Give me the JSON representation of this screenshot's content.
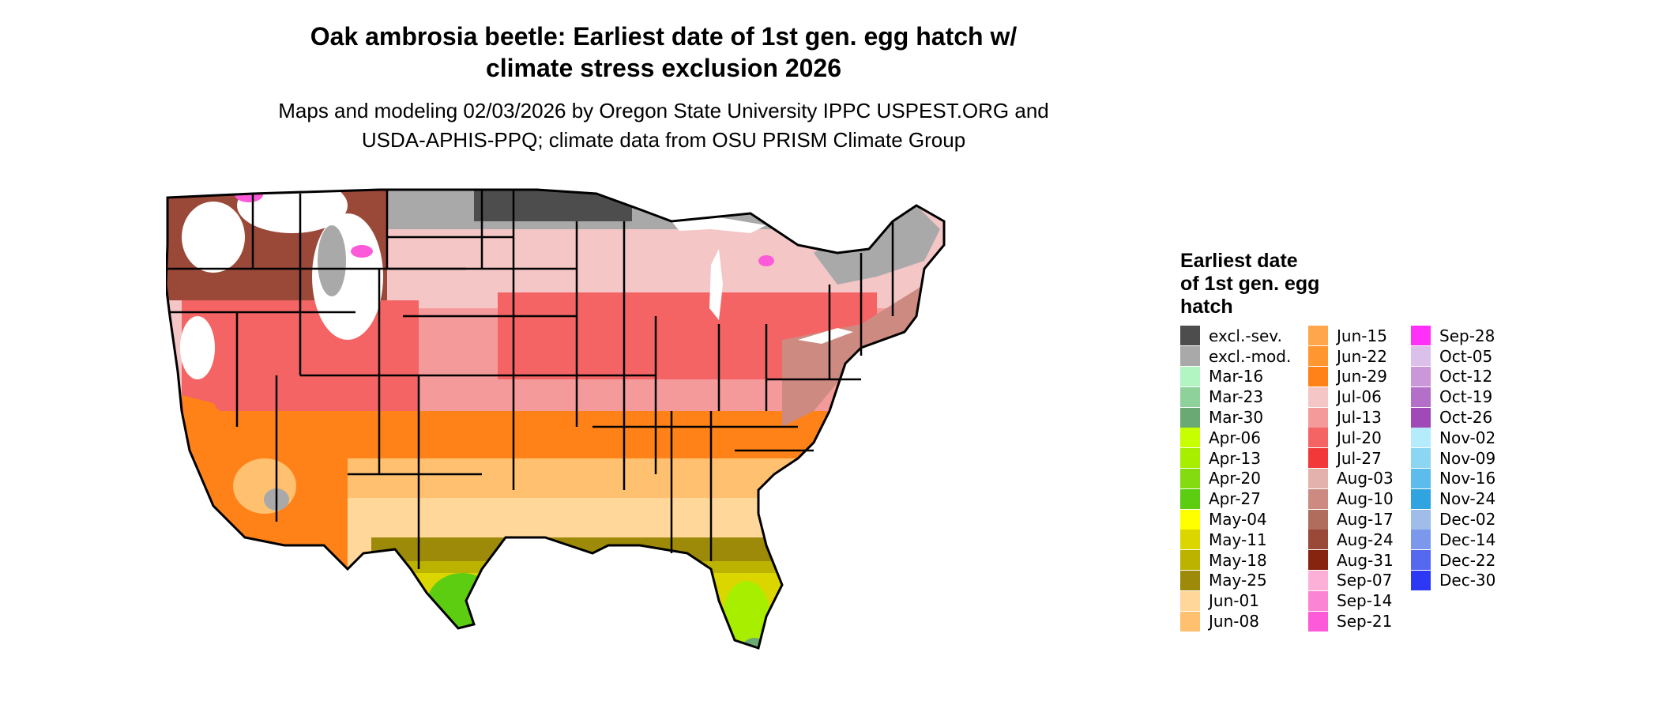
{
  "title_line1": "Oak ambrosia beetle: Earliest date of 1st gen. egg hatch w/",
  "title_line2": "climate stress exclusion 2026",
  "subtitle_line1": "Maps and modeling 02/03/2026 by Oregon State University IPPC USPEST.ORG and",
  "subtitle_line2": "USDA-APHIS-PPQ; climate data from OSU PRISM Climate Group",
  "legend": {
    "title_line1": "Earliest date",
    "title_line2": "of 1st gen. egg",
    "title_line3": "hatch",
    "col1": [
      {
        "label": "excl.-sev.",
        "color": "#4d4d4d"
      },
      {
        "label": "excl.-mod.",
        "color": "#a9a9a9"
      },
      {
        "label": "Mar-16",
        "color": "#b2f5c2"
      },
      {
        "label": "Mar-23",
        "color": "#8ed19b"
      },
      {
        "label": "Mar-30",
        "color": "#6aa874"
      },
      {
        "label": "Apr-06",
        "color": "#c8ff00"
      },
      {
        "label": "Apr-13",
        "color": "#a8ee00"
      },
      {
        "label": "Apr-20",
        "color": "#84dc10"
      },
      {
        "label": "Apr-27",
        "color": "#5ccd10"
      },
      {
        "label": "May-04",
        "color": "#ffff00"
      },
      {
        "label": "May-11",
        "color": "#dcd600"
      },
      {
        "label": "May-18",
        "color": "#bcb200"
      },
      {
        "label": "May-25",
        "color": "#9c8a08"
      },
      {
        "label": "Jun-01",
        "color": "#ffd79a"
      },
      {
        "label": "Jun-08",
        "color": "#ffc070"
      }
    ],
    "col2": [
      {
        "label": "Jun-15",
        "color": "#ffa64c"
      },
      {
        "label": "Jun-22",
        "color": "#ff9630"
      },
      {
        "label": "Jun-29",
        "color": "#ff8218"
      },
      {
        "label": "Jul-06",
        "color": "#f4c6c6"
      },
      {
        "label": "Jul-13",
        "color": "#f49a9a"
      },
      {
        "label": "Jul-20",
        "color": "#f46464"
      },
      {
        "label": "Jul-27",
        "color": "#f23838"
      },
      {
        "label": "Aug-03",
        "color": "#e4b2ac"
      },
      {
        "label": "Aug-10",
        "color": "#cc8a80"
      },
      {
        "label": "Aug-17",
        "color": "#b06c5c"
      },
      {
        "label": "Aug-24",
        "color": "#9a4838"
      },
      {
        "label": "Aug-31",
        "color": "#862410"
      },
      {
        "label": "Sep-07",
        "color": "#fcb0d8"
      },
      {
        "label": "Sep-14",
        "color": "#fc84d4"
      },
      {
        "label": "Sep-21",
        "color": "#fc5ad8"
      }
    ],
    "col3": [
      {
        "label": "Sep-28",
        "color": "#ff30f8"
      },
      {
        "label": "Oct-05",
        "color": "#dcc0ec"
      },
      {
        "label": "Oct-12",
        "color": "#ca98d8"
      },
      {
        "label": "Oct-19",
        "color": "#b470c8"
      },
      {
        "label": "Oct-26",
        "color": "#a04ab8"
      },
      {
        "label": "Nov-02",
        "color": "#b4ecfc"
      },
      {
        "label": "Nov-09",
        "color": "#8cd6f4"
      },
      {
        "label": "Nov-16",
        "color": "#5cbcec"
      },
      {
        "label": "Nov-24",
        "color": "#30a4e0"
      },
      {
        "label": "Dec-02",
        "color": "#a0bce8"
      },
      {
        "label": "Dec-14",
        "color": "#7c98ec"
      },
      {
        "label": "Dec-22",
        "color": "#5468f0"
      },
      {
        "label": "Dec-30",
        "color": "#2c38f4"
      }
    ]
  },
  "map_colors": {
    "sev": "#4d4d4d",
    "mod": "#a9a9a9",
    "white": "#ffffff",
    "pink_light": "#f4c6c6",
    "pink_mid": "#f49a9a",
    "red": "#f46464",
    "brown_light": "#cc8a80",
    "brown": "#9a4838",
    "orange": "#ff8218",
    "orange_light": "#ffc070",
    "peach": "#ffd79a",
    "olive": "#9c8a08",
    "olive_light": "#bcb200",
    "yellow": "#dcd600",
    "green_yellow": "#a8ee00",
    "green": "#5ccd10",
    "teal": "#6aa874",
    "magenta": "#fc5ad8"
  }
}
